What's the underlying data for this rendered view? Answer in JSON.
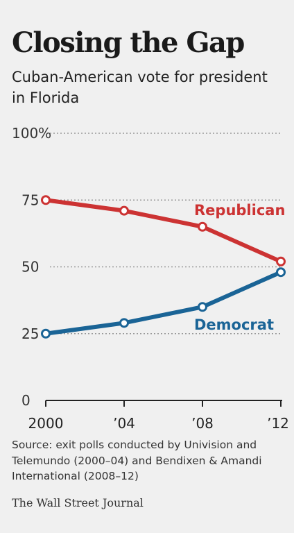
{
  "header": {
    "title": "Closing the Gap",
    "subtitle": "Cuban-American vote for president in Florida"
  },
  "chart_data": {
    "type": "line",
    "title": "Closing the Gap",
    "subtitle": "Cuban-American vote for president in Florida",
    "categories": [
      "2000",
      "'04",
      "'08",
      "'12"
    ],
    "x_tick_labels": [
      "2000",
      "’04",
      "’08",
      "’12"
    ],
    "y_tick_labels": [
      "0",
      "25",
      "50",
      "75",
      "100%"
    ],
    "yticks": [
      0,
      25,
      50,
      75,
      100
    ],
    "ylim": [
      0,
      100
    ],
    "grid": true,
    "series": [
      {
        "name": "Republican",
        "values": [
          75,
          71,
          65,
          52
        ],
        "color": "#cc3333"
      },
      {
        "name": "Democrat",
        "values": [
          25,
          29,
          35,
          48
        ],
        "color": "#1a6496"
      }
    ],
    "legend": "inline-labels",
    "xlabel": "",
    "ylabel": ""
  },
  "footer": {
    "source": "Source: exit polls conducted by Univision and Telemundo (2000–04) and Bendixen & Amandi International (2008–12)",
    "publisher": "The Wall Street Journal"
  },
  "colors": {
    "background": "#f0f0f0",
    "republican": "#cc3333",
    "democrat": "#1a6496",
    "axis": "#222222",
    "grid": "#999999"
  }
}
